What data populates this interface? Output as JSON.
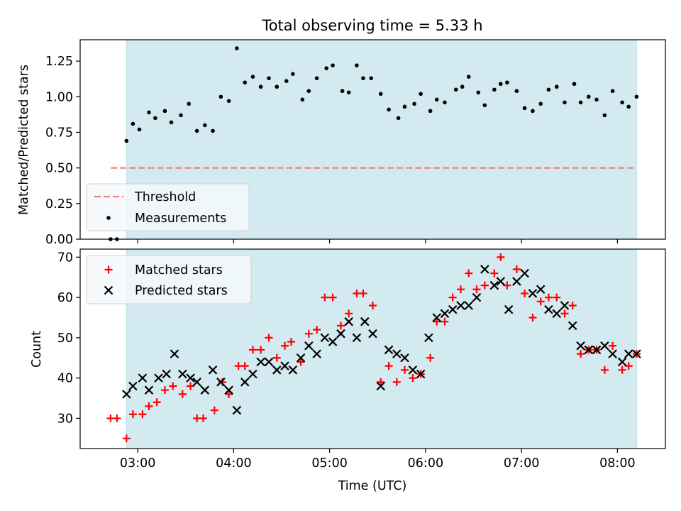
{
  "colors": {
    "shade": "#d3eaf0",
    "threshold": "#f07f7f",
    "measurement": "#000000",
    "matched": "#ff0000",
    "predicted": "#000000",
    "legend_bg": "#f5f9fb"
  },
  "chart_data": [
    {
      "type": "scatter",
      "title": "Total observing time = 5.33 h",
      "ylabel": "Matched/Predicted stars",
      "xlabel": "",
      "xlim_hours": [
        2.4,
        8.5
      ],
      "ylim": [
        0,
        1.4
      ],
      "x_ticks": [
        "03:00",
        "04:00",
        "05:00",
        "06:00",
        "07:00",
        "08:00"
      ],
      "x_tick_labels_shown": false,
      "y_ticks": [
        "0.00",
        "0.25",
        "0.50",
        "0.75",
        "1.00",
        "1.25"
      ],
      "grid": false,
      "legend_position": "lower-left",
      "shaded_interval_hours": [
        2.883,
        8.2
      ],
      "threshold": {
        "name": "Threshold",
        "value": 0.5,
        "x_range_hours": [
          2.72,
          8.2
        ],
        "style": "dashed"
      },
      "series": [
        {
          "name": "Measurements",
          "marker": "dot",
          "x_hours": [
            2.717,
            2.783,
            2.883,
            2.95,
            3.017,
            3.117,
            3.183,
            3.283,
            3.35,
            3.45,
            3.533,
            3.617,
            3.7,
            3.783,
            3.867,
            3.95,
            4.033,
            4.117,
            4.2,
            4.283,
            4.367,
            4.45,
            4.55,
            4.617,
            4.717,
            4.783,
            4.867,
            4.967,
            5.033,
            5.133,
            5.2,
            5.283,
            5.35,
            5.433,
            5.533,
            5.617,
            5.717,
            5.783,
            5.883,
            5.95,
            6.05,
            6.117,
            6.2,
            6.317,
            6.383,
            6.45,
            6.55,
            6.617,
            6.717,
            6.783,
            6.85,
            6.95,
            7.033,
            7.117,
            7.2,
            7.283,
            7.367,
            7.45,
            7.55,
            7.617,
            7.7,
            7.783,
            7.867,
            7.95,
            8.05,
            8.117,
            8.2
          ],
          "y": [
            0.0,
            0.0,
            0.69,
            0.81,
            0.77,
            0.89,
            0.85,
            0.9,
            0.82,
            0.87,
            0.95,
            0.76,
            0.8,
            0.76,
            1.0,
            0.97,
            1.34,
            1.1,
            1.14,
            1.07,
            1.13,
            1.07,
            1.11,
            1.16,
            0.98,
            1.04,
            1.13,
            1.2,
            1.22,
            1.04,
            1.03,
            1.22,
            1.13,
            1.13,
            1.02,
            0.91,
            0.85,
            0.93,
            0.95,
            1.02,
            0.9,
            0.98,
            0.96,
            1.05,
            1.07,
            1.14,
            1.03,
            0.94,
            1.05,
            1.09,
            1.1,
            1.04,
            0.92,
            0.9,
            0.95,
            1.05,
            1.07,
            0.96,
            1.09,
            0.96,
            1.0,
            0.98,
            0.87,
            1.04,
            0.96,
            0.93,
            1.0
          ]
        }
      ]
    },
    {
      "type": "scatter",
      "title": "",
      "ylabel": "Count",
      "xlabel": "Time (UTC)",
      "xlim_hours": [
        2.4,
        8.5
      ],
      "ylim": [
        22.5,
        72
      ],
      "x_ticks": [
        "03:00",
        "04:00",
        "05:00",
        "06:00",
        "07:00",
        "08:00"
      ],
      "x_tick_labels_shown": true,
      "y_ticks": [
        "30",
        "40",
        "50",
        "60",
        "70"
      ],
      "grid": false,
      "legend_position": "upper-left",
      "shaded_interval_hours": [
        2.883,
        8.2
      ],
      "series": [
        {
          "name": "Matched stars",
          "marker": "plus",
          "x_hours": [
            2.717,
            2.783,
            2.883,
            2.95,
            3.05,
            3.117,
            3.2,
            3.283,
            3.367,
            3.467,
            3.55,
            3.617,
            3.683,
            3.8,
            3.883,
            3.95,
            4.05,
            4.117,
            4.2,
            4.283,
            4.367,
            4.45,
            4.533,
            4.6,
            4.7,
            4.783,
            4.867,
            4.95,
            5.033,
            5.117,
            5.2,
            5.283,
            5.35,
            5.45,
            5.533,
            5.617,
            5.7,
            5.783,
            5.867,
            5.95,
            6.05,
            6.117,
            6.2,
            6.283,
            6.367,
            6.45,
            6.533,
            6.617,
            6.717,
            6.783,
            6.85,
            6.95,
            7.033,
            7.117,
            7.2,
            7.283,
            7.367,
            7.45,
            7.533,
            7.617,
            7.7,
            7.783,
            7.867,
            7.95,
            8.05,
            8.117,
            8.2
          ],
          "y": [
            30,
            30,
            25,
            31,
            31,
            33,
            34,
            37,
            38,
            36,
            38,
            30,
            30,
            32,
            39,
            36,
            43,
            43,
            47,
            47,
            50,
            45,
            48,
            49,
            44,
            51,
            52,
            60,
            60,
            53,
            56,
            61,
            61,
            58,
            39,
            43,
            39,
            42,
            40,
            41,
            45,
            54,
            54,
            60,
            62,
            66,
            62,
            63,
            66,
            70,
            63,
            67,
            61,
            55,
            59,
            60,
            60,
            56,
            58,
            46,
            47,
            47,
            42,
            48,
            42,
            43,
            46
          ]
        },
        {
          "name": "Predicted stars",
          "marker": "x",
          "x_hours": [
            2.883,
            2.95,
            3.05,
            3.117,
            3.217,
            3.3,
            3.383,
            3.467,
            3.55,
            3.617,
            3.7,
            3.783,
            3.867,
            3.95,
            4.033,
            4.117,
            4.2,
            4.283,
            4.367,
            4.45,
            4.533,
            4.617,
            4.7,
            4.783,
            4.867,
            4.95,
            5.033,
            5.117,
            5.2,
            5.283,
            5.367,
            5.45,
            5.533,
            5.617,
            5.7,
            5.783,
            5.867,
            5.95,
            6.033,
            6.117,
            6.2,
            6.283,
            6.367,
            6.45,
            6.533,
            6.617,
            6.717,
            6.783,
            6.867,
            6.95,
            7.033,
            7.117,
            7.2,
            7.283,
            7.367,
            7.45,
            7.533,
            7.617,
            7.7,
            7.783,
            7.867,
            7.95,
            8.05,
            8.117,
            8.2
          ],
          "y": [
            36,
            38,
            40,
            37,
            40,
            41,
            46,
            41,
            40,
            39,
            37,
            42,
            39,
            37,
            32,
            39,
            41,
            44,
            44,
            42,
            43,
            42,
            45,
            48,
            46,
            50,
            49,
            51,
            54,
            50,
            54,
            51,
            38,
            47,
            46,
            45,
            42,
            41,
            50,
            55,
            56,
            57,
            58,
            58,
            60,
            67,
            63,
            64,
            57,
            64,
            66,
            61,
            62,
            57,
            56,
            58,
            53,
            48,
            47,
            47,
            48,
            46,
            44,
            46,
            46
          ]
        }
      ]
    }
  ]
}
